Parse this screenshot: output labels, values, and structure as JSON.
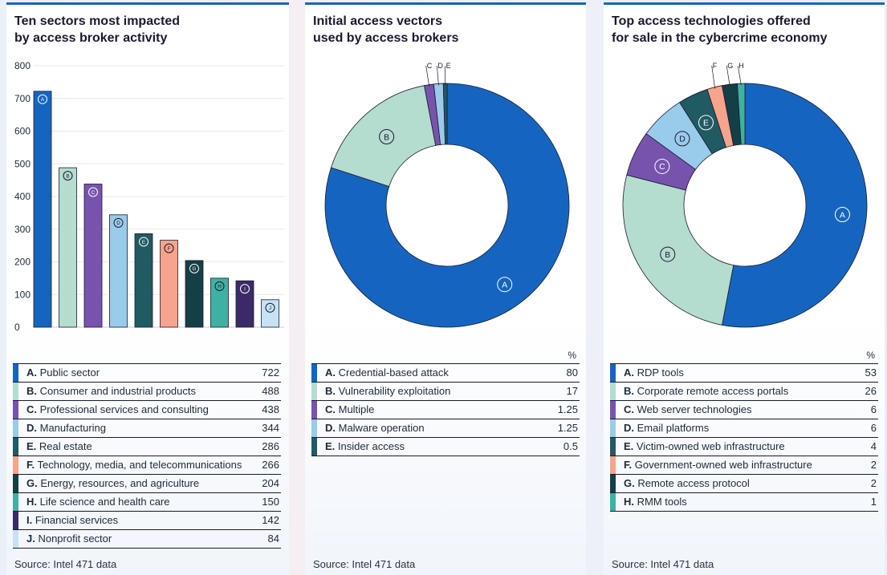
{
  "panels": [
    {
      "title_line1": "Ten sectors most impacted",
      "title_line2": "by access broker activity",
      "source": "Source: Intel 471 data",
      "chart_data": {
        "type": "bar",
        "categories": [
          "A",
          "B",
          "C",
          "D",
          "E",
          "F",
          "G",
          "H",
          "I",
          "J"
        ],
        "values": [
          722,
          488,
          438,
          344,
          286,
          266,
          204,
          150,
          142,
          84
        ],
        "ylim": [
          0,
          800
        ],
        "yticks": [
          "0",
          "100",
          "200",
          "300",
          "400",
          "500",
          "600",
          "700",
          "800"
        ],
        "colors": [
          "#1565c0",
          "#b4dccf",
          "#7753ae",
          "#99cbea",
          "#205a63",
          "#f6a48b",
          "#153f47",
          "#3fb1a3",
          "#3b2a67",
          "#c7e1f5"
        ],
        "legend": [
          {
            "letter": "A.",
            "label": "Public sector",
            "value": "722"
          },
          {
            "letter": "B.",
            "label": "Consumer and industrial products",
            "value": "488"
          },
          {
            "letter": "C.",
            "label": "Professional services and consulting",
            "value": "438"
          },
          {
            "letter": "D.",
            "label": "Manufacturing",
            "value": "344"
          },
          {
            "letter": "E.",
            "label": "Real estate",
            "value": "286"
          },
          {
            "letter": "F.",
            "label": "Technology, media, and telecommunications",
            "value": "266"
          },
          {
            "letter": "G.",
            "label": "Energy, resources, and agriculture",
            "value": "204"
          },
          {
            "letter": "H.",
            "label": "Life science and health care",
            "value": "150"
          },
          {
            "letter": "I.",
            "label": "Financial services",
            "value": "142"
          },
          {
            "letter": "J.",
            "label": "Nonprofit sector",
            "value": "84"
          }
        ]
      }
    },
    {
      "title_line1": "Initial access vectors",
      "title_line2": "used by access brokers",
      "source": "Source: Intel 471 data",
      "pct_label": "%",
      "chart_data": {
        "type": "pie",
        "categories": [
          "A",
          "B",
          "C",
          "D",
          "E"
        ],
        "values": [
          80,
          17,
          1.25,
          1.25,
          0.5
        ],
        "colors": [
          "#1565c0",
          "#b4dccf",
          "#7753ae",
          "#99cbea",
          "#205a63"
        ],
        "legend": [
          {
            "letter": "A.",
            "label": "Credential-based attack",
            "value": "80"
          },
          {
            "letter": "B.",
            "label": "Vulnerability exploitation",
            "value": "17"
          },
          {
            "letter": "C.",
            "label": "Multiple",
            "value": "1.25"
          },
          {
            "letter": "D.",
            "label": "Malware operation",
            "value": "1.25"
          },
          {
            "letter": "E.",
            "label": "Insider access",
            "value": "0.5"
          }
        ]
      }
    },
    {
      "title_line1": "Top access technologies offered",
      "title_line2": "for sale in the cybercrime economy",
      "source": "Source: Intel 471 data",
      "pct_label": "%",
      "chart_data": {
        "type": "pie",
        "categories": [
          "A",
          "B",
          "C",
          "D",
          "E",
          "F",
          "G",
          "H"
        ],
        "values": [
          53,
          26,
          6,
          6,
          4,
          2,
          2,
          1
        ],
        "colors": [
          "#1565c0",
          "#b4dccf",
          "#7753ae",
          "#99cbea",
          "#205a63",
          "#f6a48b",
          "#153f47",
          "#3fb1a3"
        ],
        "legend": [
          {
            "letter": "A.",
            "label": "RDP tools",
            "value": "53"
          },
          {
            "letter": "B.",
            "label": "Corporate remote access portals",
            "value": "26"
          },
          {
            "letter": "C.",
            "label": "Web server technologies",
            "value": "6"
          },
          {
            "letter": "D.",
            "label": "Email platforms",
            "value": "6"
          },
          {
            "letter": "E.",
            "label": "Victim-owned web infrastructure",
            "value": "4"
          },
          {
            "letter": "F.",
            "label": "Government-owned web infrastructure",
            "value": "2"
          },
          {
            "letter": "G.",
            "label": "Remote access protocol",
            "value": "2"
          },
          {
            "letter": "H.",
            "label": "RMM tools",
            "value": "1"
          }
        ]
      }
    }
  ]
}
